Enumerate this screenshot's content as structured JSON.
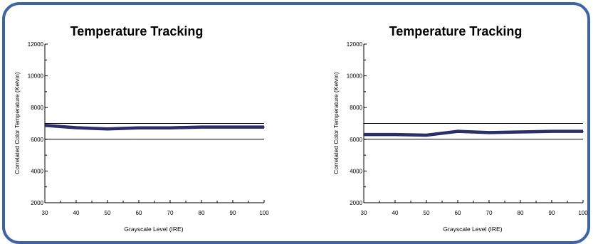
{
  "colors": {
    "frame": "#3f64a5",
    "series": "#2c2d6b",
    "reference_lines": "#000000"
  },
  "chart_data": [
    {
      "type": "line",
      "title": "Temperature Tracking",
      "xlabel": "Grayscale Level (IRE)",
      "ylabel": "Correlated Color Temperature (Kelvin)",
      "xlim": [
        30,
        100
      ],
      "ylim": [
        2000,
        12000
      ],
      "x_ticks": [
        30,
        40,
        50,
        60,
        70,
        80,
        90,
        100
      ],
      "y_ticks": [
        2000,
        4000,
        6000,
        8000,
        10000,
        12000
      ],
      "reference_lines": [
        6000,
        7000
      ],
      "x": [
        30,
        40,
        50,
        60,
        70,
        80,
        90,
        100
      ],
      "series": [
        {
          "values": [
            6880,
            6730,
            6650,
            6720,
            6720,
            6770,
            6770,
            6770
          ]
        }
      ]
    },
    {
      "type": "line",
      "title": "Temperature Tracking",
      "xlabel": "Grayscale Level (IRE)",
      "ylabel": "Correlated Color Temperature (Kelvin)",
      "xlim": [
        30,
        100
      ],
      "ylim": [
        2000,
        12000
      ],
      "x_ticks": [
        30,
        40,
        50,
        60,
        70,
        80,
        90,
        100
      ],
      "y_ticks": [
        2000,
        4000,
        6000,
        8000,
        10000,
        12000
      ],
      "reference_lines": [
        6000,
        7000
      ],
      "x": [
        30,
        40,
        50,
        60,
        70,
        80,
        90,
        100
      ],
      "series": [
        {
          "values": [
            6300,
            6300,
            6260,
            6500,
            6420,
            6460,
            6500,
            6500
          ]
        }
      ]
    }
  ]
}
